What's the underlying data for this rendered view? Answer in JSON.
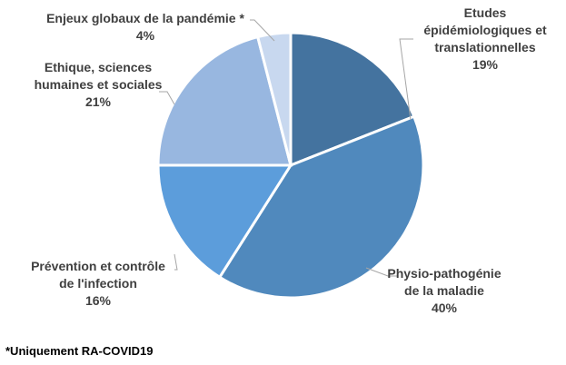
{
  "chart_data": {
    "type": "pie",
    "slices": [
      {
        "name": "Etudes épidémiologiques et translationnelles",
        "label_lines": [
          "Etudes",
          "épidémiologiques et",
          "translationnelles"
        ],
        "pct_label": "19%",
        "value": 19,
        "color": "#44739f"
      },
      {
        "name": "Physio-pathogénie de la maladie",
        "label_lines": [
          "Physio-pathogénie",
          "de la maladie"
        ],
        "pct_label": "40%",
        "value": 40,
        "color": "#5089bd"
      },
      {
        "name": "Prévention et contrôle de l'infection",
        "label_lines": [
          "Prévention et contrôle",
          "de l'infection"
        ],
        "pct_label": "16%",
        "value": 16,
        "color": "#5c9ddb"
      },
      {
        "name": "Ethique, sciences humaines et sociales",
        "label_lines": [
          "Ethique, sciences",
          "humaines et sociales"
        ],
        "pct_label": "21%",
        "value": 21,
        "color": "#98b7e0"
      },
      {
        "name": "Enjeux globaux de la pandémie *",
        "label_lines": [
          "Enjeux globaux de la pandémie *"
        ],
        "pct_label": "4%",
        "value": 4,
        "color": "#c8d8ef"
      }
    ],
    "footnote": "*Uniquement RA-COVID19"
  }
}
